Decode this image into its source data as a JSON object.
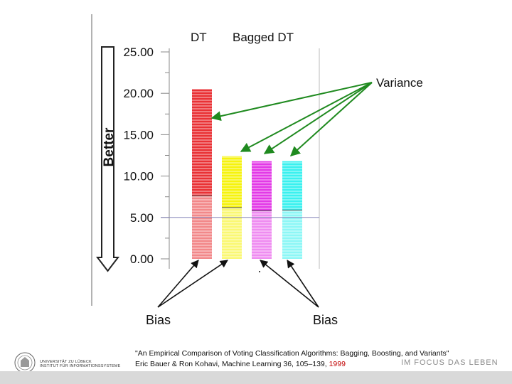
{
  "chart_data": {
    "type": "bar",
    "stacked": true,
    "categories": [
      "DT",
      "Bagged DT (1)",
      "Bagged DT (2)",
      "Bagged DT (3)"
    ],
    "series": [
      {
        "name": "Bias",
        "values": [
          7.6,
          6.2,
          5.8,
          5.9
        ]
      },
      {
        "name": "Variance",
        "values": [
          12.9,
          6.2,
          6.0,
          5.9
        ]
      }
    ],
    "bar_colors": [
      "#e8262a",
      "#f5f200",
      "#e22ee6",
      "#2ff0ee"
    ],
    "ylim": [
      0,
      25
    ],
    "yticks": [
      "0.00",
      "5.00",
      "10.00",
      "15.00",
      "20.00",
      "25.00"
    ],
    "ytick_values": [
      0,
      5,
      10,
      15,
      20,
      25
    ],
    "grid": false
  },
  "legend": {
    "dt": "DT",
    "bagged": "Bagged DT"
  },
  "axis_note": "Better",
  "annotations": {
    "variance": "Variance",
    "bias_left": "Bias",
    "bias_right": "Bias"
  },
  "citation": {
    "line1": "\"An Empirical Comparison of Voting Classification Algorithms: Bagging, Boosting, and Variants\"",
    "line2_prefix": "Eric Bauer & Ron Kohavi, Machine Learning 36, 105–139, ",
    "year": "1999"
  },
  "footer": {
    "university_line1": "UNIVERSITÄT ZU LÜBECK",
    "university_line2": "INSTITUT FÜR INFORMATIONSSYSTEME",
    "slogan": "IM FOCUS DAS LEBEN"
  },
  "colors": {
    "arrow": "#1f8a1f",
    "axis": "#888888",
    "accent": "#c00000"
  }
}
